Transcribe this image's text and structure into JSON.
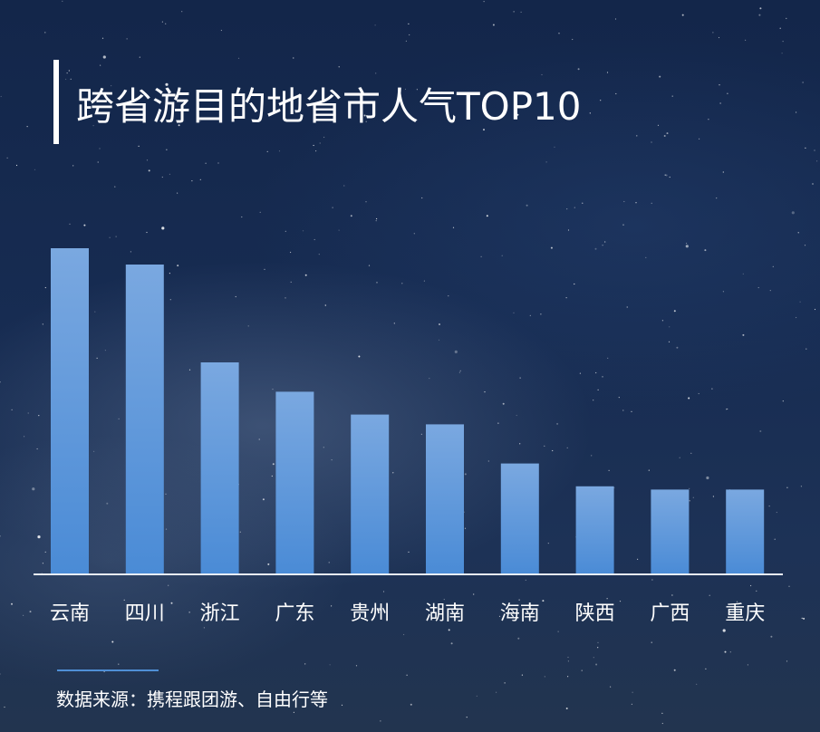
{
  "title": "跨省游目的地省市人气TOP10",
  "source": "数据来源：携程跟团游、自由行等",
  "colors": {
    "bar_top": "#7aa8e0",
    "bar_bottom": "#4a8bd6",
    "axis": "#e8eef7",
    "text": "#ffffff"
  },
  "chart_data": {
    "type": "bar",
    "categories": [
      "云南",
      "四川",
      "浙江",
      "广东",
      "贵州",
      "湖南",
      "海南",
      "陕西",
      "广西",
      "重庆"
    ],
    "values": [
      100,
      95,
      65,
      56,
      49,
      46,
      34,
      27,
      26,
      26
    ],
    "ylim": [
      0,
      100
    ],
    "grid": false,
    "legend": "none"
  }
}
